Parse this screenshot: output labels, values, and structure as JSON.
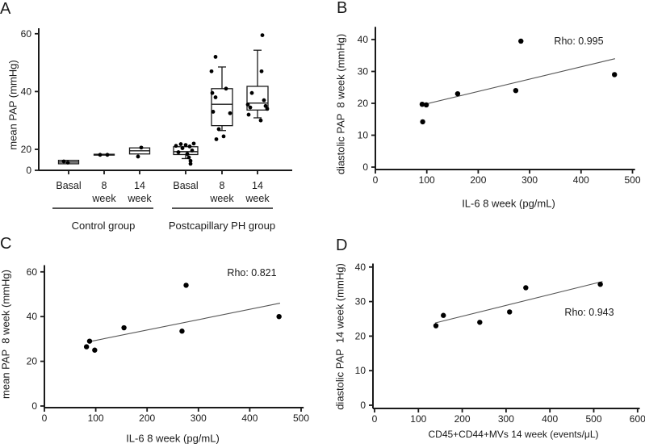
{
  "page": {
    "background": "#ffffff",
    "ink_color": "#1a1a1a",
    "point_color": "#000000",
    "trendline_color": "#555555"
  },
  "chart_data": [
    {
      "panel": "A",
      "type": "box",
      "ylabel": "mean PAP (mmHg)",
      "yticks": [
        0,
        20,
        40,
        60
      ],
      "ylim": [
        12,
        62
      ],
      "grid": false,
      "groups": [
        {
          "label": "Control group",
          "categories": [
            "Basal",
            "8 week",
            "14 week"
          ]
        },
        {
          "label": "Postcapillary PH group",
          "categories": [
            "Basal",
            "8 week",
            "14 week"
          ]
        }
      ],
      "categories": [
        "Basal",
        "8 week",
        "14 week",
        "Basal",
        "8 week",
        "14 week"
      ],
      "boxes": [
        {
          "lo": 15.0,
          "q1": 15.0,
          "median": 15.6,
          "q3": 16.2,
          "hi": 16.2
        },
        {
          "lo": 18.0,
          "q1": 18.0,
          "median": 18.1,
          "q3": 18.3,
          "hi": 18.3
        },
        {
          "lo": 18.4,
          "q1": 18.4,
          "median": 19.5,
          "q3": 20.5,
          "hi": 20.5
        },
        {
          "lo": 16.8,
          "q1": 18.2,
          "median": 19.2,
          "q3": 20.9,
          "hi": 20.9
        },
        {
          "lo": 26.5,
          "q1": 28.2,
          "median": 35.6,
          "q3": 41.0,
          "hi": 48.5
        },
        {
          "lo": 30.9,
          "q1": 33.6,
          "median": 36.0,
          "q3": 41.8,
          "hi": 54.3
        }
      ],
      "points": [
        [
          15.8,
          15.4
        ],
        [
          18.1,
          18.1
        ],
        [
          20.6,
          17.5
        ],
        [
          22,
          21.8,
          21.5,
          21.2,
          21,
          20.4,
          19.6,
          19,
          18.4,
          17.2,
          16,
          15
        ],
        [
          52,
          47,
          41,
          39.5,
          38,
          33,
          32.5,
          27,
          24.5,
          23.5
        ],
        [
          59.5,
          47,
          39.5,
          37,
          35.5,
          35,
          34.5,
          34,
          32,
          30
        ]
      ]
    },
    {
      "panel": "B",
      "type": "scatter",
      "xlabel": "IL-6 8 week (pg/mL)",
      "ylabel": "diastolic PAP  8 week (mmHg)",
      "annotation": "Rho: 0.995",
      "xticks": [
        0,
        100,
        200,
        300,
        400,
        500
      ],
      "yticks": [
        0,
        10,
        20,
        30,
        40
      ],
      "xlim": [
        0,
        505
      ],
      "ylim": [
        0,
        44
      ],
      "grid": false,
      "points": [
        [
          91,
          19.7
        ],
        [
          99,
          19.5
        ],
        [
          92,
          14.2
        ],
        [
          160,
          23
        ],
        [
          273,
          24
        ],
        [
          283,
          39.5
        ],
        [
          465,
          29
        ]
      ],
      "trendline": {
        "x1": 96,
        "y1": 19.7,
        "x2": 466,
        "y2": 34
      }
    },
    {
      "panel": "C",
      "type": "scatter",
      "xlabel": "IL-6 8 week (pg/mL)",
      "ylabel": "mean PAP  8 week (mmHg)",
      "annotation": "Rho: 0.821",
      "xticks": [
        0,
        100,
        200,
        300,
        400,
        500
      ],
      "yticks": [
        0,
        20,
        40,
        60
      ],
      "xlim": [
        0,
        505
      ],
      "ylim": [
        0,
        63
      ],
      "grid": false,
      "points": [
        [
          82,
          26.5
        ],
        [
          88,
          29
        ],
        [
          98,
          25
        ],
        [
          155,
          35
        ],
        [
          268,
          33.5
        ],
        [
          276,
          54
        ],
        [
          457,
          40
        ]
      ],
      "trendline": {
        "x1": 88,
        "y1": 28.8,
        "x2": 459,
        "y2": 46
      }
    },
    {
      "panel": "D",
      "type": "scatter",
      "xlabel": "CD45+CD44+MVs 14 week (events/μL)",
      "ylabel": "diastolic PAP  14 week (mmHg)",
      "annotation": "Rho: 0.943",
      "xticks": [
        0,
        100,
        200,
        300,
        400,
        500,
        600
      ],
      "yticks": [
        0,
        10,
        20,
        30,
        40
      ],
      "xlim": [
        0,
        605
      ],
      "ylim": [
        0,
        41
      ],
      "grid": false,
      "points": [
        [
          140,
          23
        ],
        [
          157,
          26
        ],
        [
          240,
          24
        ],
        [
          308,
          27
        ],
        [
          345,
          34
        ],
        [
          515,
          35
        ]
      ],
      "trendline": {
        "x1": 138,
        "y1": 23.8,
        "x2": 520,
        "y2": 35.8
      }
    }
  ]
}
